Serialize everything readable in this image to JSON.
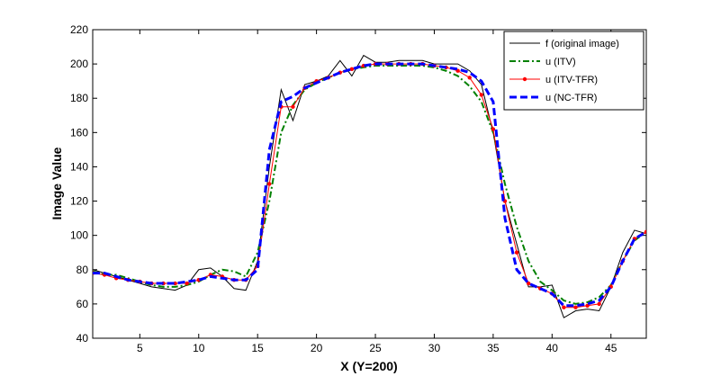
{
  "chart_data": {
    "type": "line",
    "title": "",
    "xlabel": "X (Y=200)",
    "ylabel": "Image Value",
    "xlim": [
      1,
      48
    ],
    "ylim": [
      40,
      220
    ],
    "xticks": [
      5,
      10,
      15,
      20,
      25,
      30,
      35,
      40,
      45
    ],
    "yticks": [
      40,
      60,
      80,
      100,
      120,
      140,
      160,
      180,
      200,
      220
    ],
    "grid": false,
    "legend_position": "top-right",
    "x": [
      1,
      2,
      3,
      4,
      5,
      6,
      7,
      8,
      9,
      10,
      11,
      12,
      13,
      14,
      15,
      16,
      17,
      18,
      19,
      20,
      21,
      22,
      23,
      24,
      25,
      26,
      27,
      28,
      29,
      30,
      31,
      32,
      33,
      34,
      35,
      36,
      37,
      38,
      39,
      40,
      41,
      42,
      43,
      44,
      45,
      46,
      47,
      48
    ],
    "series": [
      {
        "name": "f (original image)",
        "color": "#000000",
        "style": "solid",
        "marker": "none",
        "values": [
          80,
          78,
          76,
          74,
          72,
          70,
          69,
          68,
          71,
          80,
          81,
          76,
          69,
          68,
          85,
          140,
          185,
          167,
          188,
          190,
          193,
          202,
          193,
          205,
          201,
          201,
          202,
          202,
          202,
          200,
          200,
          200,
          196,
          188,
          160,
          120,
          95,
          70,
          70,
          71,
          52,
          56,
          57,
          56,
          70,
          90,
          103,
          101
        ]
      },
      {
        "name": "u (ITV)",
        "color": "#008000",
        "style": "dashdot",
        "marker": "none",
        "values": [
          79,
          77,
          77,
          75,
          73,
          71,
          70,
          70,
          71,
          73,
          77,
          80,
          79,
          76,
          90,
          120,
          160,
          176,
          185,
          189,
          192,
          195,
          197,
          198,
          199,
          199,
          199,
          199,
          199,
          198,
          196,
          193,
          187,
          178,
          160,
          130,
          105,
          85,
          73,
          68,
          62,
          60,
          61,
          64,
          71,
          85,
          97,
          102
        ]
      },
      {
        "name": "u (ITV-TFR)",
        "color": "#ff0000",
        "style": "solid",
        "marker": "dot",
        "values": [
          78,
          77,
          75,
          74,
          73,
          72,
          72,
          72,
          72,
          74,
          77,
          76,
          74,
          74,
          82,
          130,
          175,
          175,
          186,
          190,
          192,
          195,
          197,
          199,
          200,
          200,
          200,
          200,
          200,
          199,
          198,
          196,
          192,
          182,
          162,
          120,
          90,
          72,
          69,
          66,
          58,
          58,
          59,
          60,
          70,
          85,
          98,
          102
        ]
      },
      {
        "name": "u (NC-TFR)",
        "color": "#0000ff",
        "style": "dashed",
        "marker": "none",
        "values": [
          78,
          78,
          76,
          74,
          73,
          72,
          72,
          72,
          73,
          74,
          76,
          75,
          74,
          74,
          80,
          150,
          178,
          181,
          186,
          189,
          192,
          195,
          197,
          199,
          200,
          200,
          200,
          200,
          200,
          199,
          198,
          197,
          195,
          190,
          178,
          110,
          80,
          72,
          69,
          66,
          59,
          59,
          60,
          62,
          70,
          85,
          98,
          102
        ]
      }
    ]
  }
}
